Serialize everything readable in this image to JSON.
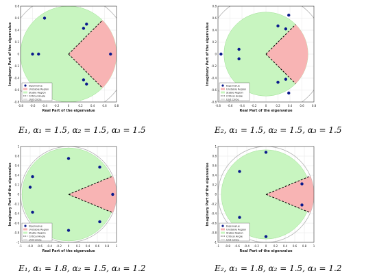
{
  "chart_data": [
    {
      "type": "scatter",
      "caption": "E₁, α₁ = 1.5, α₂ = 1.5, α₃ = 1.5",
      "xlabel": "Real Part of the eigenvalue",
      "ylabel": "Imaginary Part of the eigenvalue",
      "xlim": [
        -0.8,
        0.8
      ],
      "ylim": [
        -0.8,
        0.8
      ],
      "xticks": [
        -0.8,
        -0.6,
        -0.4,
        -0.2,
        0,
        0.2,
        0.4,
        0.6,
        0.8
      ],
      "yticks": [
        -0.8,
        -0.6,
        -0.4,
        -0.2,
        0,
        0.2,
        0.4,
        0.6,
        0.8
      ],
      "stable_radius": 0.8,
      "critical_angle_deg": 45,
      "unstable_radius": 0.8,
      "points": [
        [
          -0.4,
          0.6
        ],
        [
          -0.6,
          0.0
        ],
        [
          -0.5,
          0.0
        ],
        [
          -0.4,
          -0.6
        ],
        [
          0.3,
          0.5
        ],
        [
          0.25,
          0.43
        ],
        [
          0.25,
          -0.43
        ],
        [
          0.3,
          -0.5
        ],
        [
          0.7,
          0.0
        ]
      ],
      "legend": [
        "Eigenvalue",
        "Unstable Region",
        "Stable Region",
        "Critical Angle",
        "Unit Circle"
      ],
      "legend_position": "bottom-left",
      "grid": true
    },
    {
      "type": "scatter",
      "caption": "E₂, α₁ = 1.5, α₂ = 1.5, α₃ = 1.5",
      "xlabel": "Real Part of the eigenvalue",
      "ylabel": "Imaginary Part of the eigenvalue",
      "xlim": [
        -0.8,
        0.8
      ],
      "ylim": [
        -0.8,
        0.8
      ],
      "xticks": [
        -0.8,
        -0.6,
        -0.4,
        -0.2,
        0,
        0.2,
        0.4,
        0.6,
        0.8
      ],
      "yticks": [
        -0.8,
        -0.6,
        -0.4,
        -0.2,
        0,
        0.2,
        0.4,
        0.6,
        0.8
      ],
      "stable_radius": 0.7,
      "critical_angle_deg": 45,
      "unstable_radius": 0.7,
      "points": [
        [
          -0.75,
          0.0
        ],
        [
          -0.45,
          0.08
        ],
        [
          -0.45,
          -0.08
        ],
        [
          0.2,
          0.47
        ],
        [
          0.33,
          0.42
        ],
        [
          0.38,
          0.65
        ],
        [
          0.2,
          -0.47
        ],
        [
          0.33,
          -0.42
        ],
        [
          0.38,
          -0.65
        ]
      ],
      "legend": [
        "Eigenvalue",
        "Unstable Region",
        "Stable Region",
        "Critical Angle",
        "Unit Circle"
      ],
      "legend_position": "bottom-left",
      "grid": true
    },
    {
      "type": "scatter",
      "caption": "E₁, α₁ = 1.8, α₂ = 1.5, α₃ = 1.2",
      "xlabel": "Real Part of the eigenvalue",
      "ylabel": "Imaginary Part of the eigenvalue",
      "xlim": [
        -1,
        1
      ],
      "ylim": [
        -1,
        1
      ],
      "xticks": [
        -1,
        -0.8,
        -0.6,
        -0.4,
        -0.2,
        0,
        0.2,
        0.4,
        0.6,
        0.8,
        1
      ],
      "yticks": [
        -1,
        -0.8,
        -0.6,
        -0.4,
        -0.2,
        0,
        0.2,
        0.4,
        0.6,
        0.8,
        1
      ],
      "stable_radius": 0.97,
      "critical_angle_deg": 22.5,
      "unstable_radius": 1.0,
      "points": [
        [
          0.0,
          0.75
        ],
        [
          0.65,
          0.57
        ],
        [
          -0.75,
          0.37
        ],
        [
          -0.8,
          0.15
        ],
        [
          -0.75,
          -0.37
        ],
        [
          0.0,
          -0.75
        ],
        [
          0.65,
          -0.57
        ],
        [
          0.92,
          0.0
        ]
      ],
      "legend": [
        "Eigenvalue",
        "Unstable Region",
        "Stable Region",
        "Critical Angle",
        "Unit Circle"
      ],
      "legend_position": "bottom-left",
      "grid": true
    },
    {
      "type": "scatter",
      "caption": "E₂, α₁ = 1.8, α₂ = 1.5, α₃ = 1.2",
      "xlabel": "Real Part of the eigenvalue",
      "ylabel": "Imaginary Part of the eigenvalue",
      "xlim": [
        -1,
        1
      ],
      "ylim": [
        -1,
        1
      ],
      "xticks": [
        -1,
        -0.8,
        -0.6,
        -0.4,
        -0.2,
        0,
        0.2,
        0.4,
        0.6,
        0.8,
        1
      ],
      "yticks": [
        -1,
        -0.8,
        -0.6,
        -0.4,
        -0.2,
        0,
        0.2,
        0.4,
        0.6,
        0.8,
        1
      ],
      "stable_radius": 0.93,
      "critical_angle_deg": 22.5,
      "unstable_radius": 1.0,
      "points": [
        [
          0.0,
          0.88
        ],
        [
          -0.55,
          0.48
        ],
        [
          -0.55,
          -0.48
        ],
        [
          0.0,
          -0.88
        ],
        [
          0.75,
          0.22
        ],
        [
          0.75,
          -0.22
        ]
      ],
      "legend": [
        "Eigenvalue",
        "Unstable Region",
        "Stable Region",
        "Critical Angle",
        "Unit Circle"
      ],
      "legend_position": "bottom-left",
      "grid": true
    }
  ],
  "colors": {
    "stable": "#c8f5c0",
    "unstable": "#f8b4b4",
    "point": "#0a1a8c",
    "unit_circle": "#b0b0b0",
    "critical": "#000000"
  }
}
